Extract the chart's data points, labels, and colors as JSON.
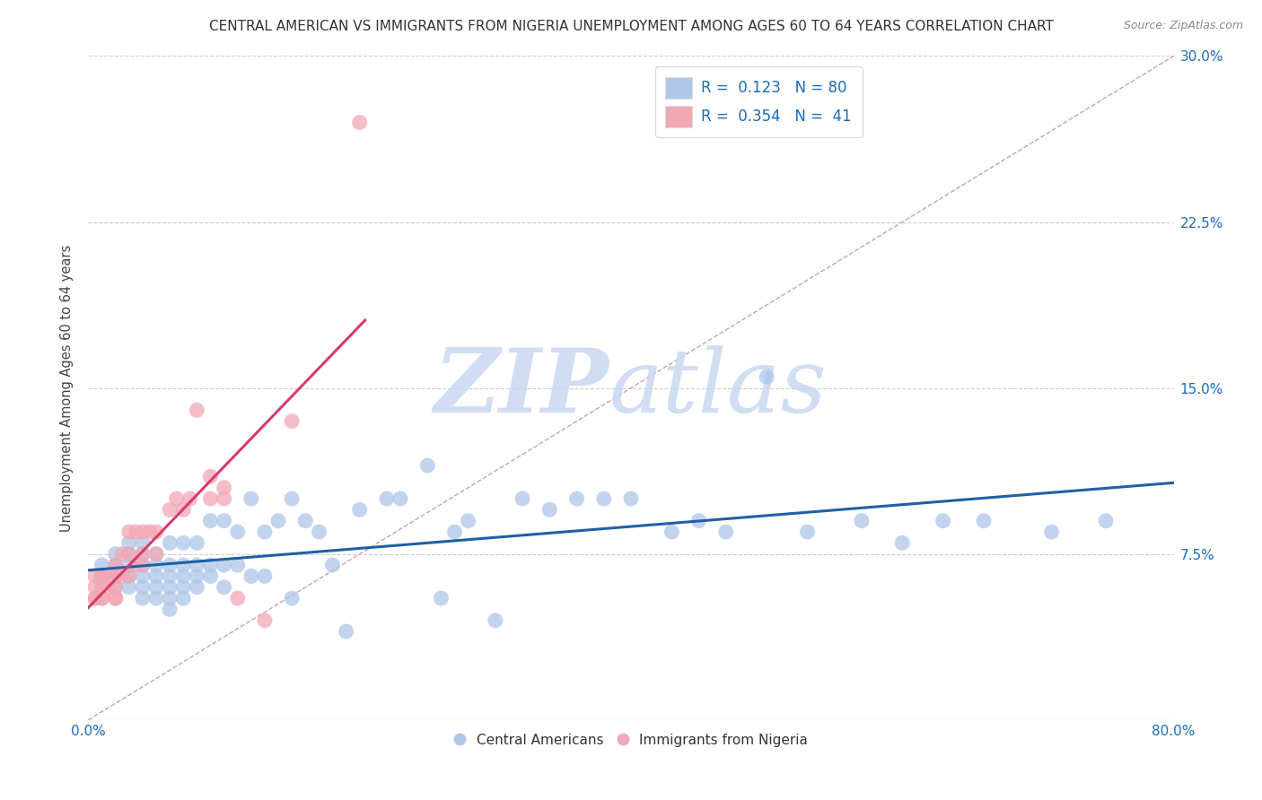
{
  "title": "CENTRAL AMERICAN VS IMMIGRANTS FROM NIGERIA UNEMPLOYMENT AMONG AGES 60 TO 64 YEARS CORRELATION CHART",
  "source": "Source: ZipAtlas.com",
  "ylabel": "Unemployment Among Ages 60 to 64 years",
  "xlim": [
    0.0,
    0.8
  ],
  "ylim": [
    0.0,
    0.3
  ],
  "yticks": [
    0.0,
    0.075,
    0.15,
    0.225,
    0.3
  ],
  "yticklabels": [
    "",
    "7.5%",
    "15.0%",
    "22.5%",
    "30.0%"
  ],
  "xtick_left_label": "0.0%",
  "xtick_right_label": "80.0%",
  "blue_R": 0.123,
  "blue_N": 80,
  "pink_R": 0.354,
  "pink_N": 41,
  "blue_color": "#aec6e8",
  "pink_color": "#f2a7b5",
  "blue_line_color": "#1f5fa6",
  "pink_line_color": "#d63b6e",
  "diag_color": "#d0a0a8",
  "watermark_color": "#c8d8f0",
  "grid_color": "#cccccc",
  "legend_label_color": "#1a6bbf",
  "blue_x": [
    0.01,
    0.01,
    0.02,
    0.02,
    0.02,
    0.02,
    0.03,
    0.03,
    0.03,
    0.03,
    0.03,
    0.04,
    0.04,
    0.04,
    0.04,
    0.04,
    0.04,
    0.05,
    0.05,
    0.05,
    0.05,
    0.05,
    0.06,
    0.06,
    0.06,
    0.06,
    0.06,
    0.06,
    0.07,
    0.07,
    0.07,
    0.07,
    0.07,
    0.08,
    0.08,
    0.08,
    0.08,
    0.09,
    0.09,
    0.09,
    0.1,
    0.1,
    0.1,
    0.11,
    0.11,
    0.12,
    0.12,
    0.13,
    0.13,
    0.14,
    0.15,
    0.15,
    0.16,
    0.17,
    0.18,
    0.19,
    0.2,
    0.22,
    0.23,
    0.25,
    0.26,
    0.27,
    0.28,
    0.3,
    0.32,
    0.34,
    0.36,
    0.38,
    0.4,
    0.43,
    0.45,
    0.47,
    0.5,
    0.53,
    0.57,
    0.6,
    0.63,
    0.66,
    0.71,
    0.75
  ],
  "blue_y": [
    0.065,
    0.07,
    0.06,
    0.07,
    0.065,
    0.075,
    0.06,
    0.065,
    0.07,
    0.075,
    0.08,
    0.055,
    0.06,
    0.065,
    0.07,
    0.075,
    0.08,
    0.055,
    0.06,
    0.065,
    0.07,
    0.075,
    0.05,
    0.055,
    0.06,
    0.065,
    0.07,
    0.08,
    0.055,
    0.06,
    0.065,
    0.07,
    0.08,
    0.06,
    0.065,
    0.07,
    0.08,
    0.065,
    0.07,
    0.09,
    0.06,
    0.07,
    0.09,
    0.07,
    0.085,
    0.065,
    0.1,
    0.065,
    0.085,
    0.09,
    0.055,
    0.1,
    0.09,
    0.085,
    0.07,
    0.04,
    0.095,
    0.1,
    0.1,
    0.115,
    0.055,
    0.085,
    0.09,
    0.045,
    0.1,
    0.095,
    0.1,
    0.1,
    0.1,
    0.085,
    0.09,
    0.085,
    0.155,
    0.085,
    0.09,
    0.08,
    0.09,
    0.09,
    0.085,
    0.09
  ],
  "pink_x": [
    0.005,
    0.005,
    0.005,
    0.005,
    0.01,
    0.01,
    0.01,
    0.01,
    0.015,
    0.015,
    0.02,
    0.02,
    0.02,
    0.02,
    0.02,
    0.025,
    0.025,
    0.03,
    0.03,
    0.03,
    0.035,
    0.035,
    0.04,
    0.04,
    0.04,
    0.045,
    0.05,
    0.05,
    0.06,
    0.065,
    0.07,
    0.075,
    0.08,
    0.09,
    0.09,
    0.1,
    0.1,
    0.11,
    0.13,
    0.15,
    0.2
  ],
  "pink_y": [
    0.055,
    0.06,
    0.065,
    0.055,
    0.055,
    0.06,
    0.065,
    0.055,
    0.06,
    0.065,
    0.055,
    0.06,
    0.065,
    0.07,
    0.055,
    0.065,
    0.075,
    0.065,
    0.075,
    0.085,
    0.07,
    0.085,
    0.07,
    0.075,
    0.085,
    0.085,
    0.075,
    0.085,
    0.095,
    0.1,
    0.095,
    0.1,
    0.14,
    0.1,
    0.11,
    0.1,
    0.105,
    0.055,
    0.045,
    0.135,
    0.27
  ]
}
